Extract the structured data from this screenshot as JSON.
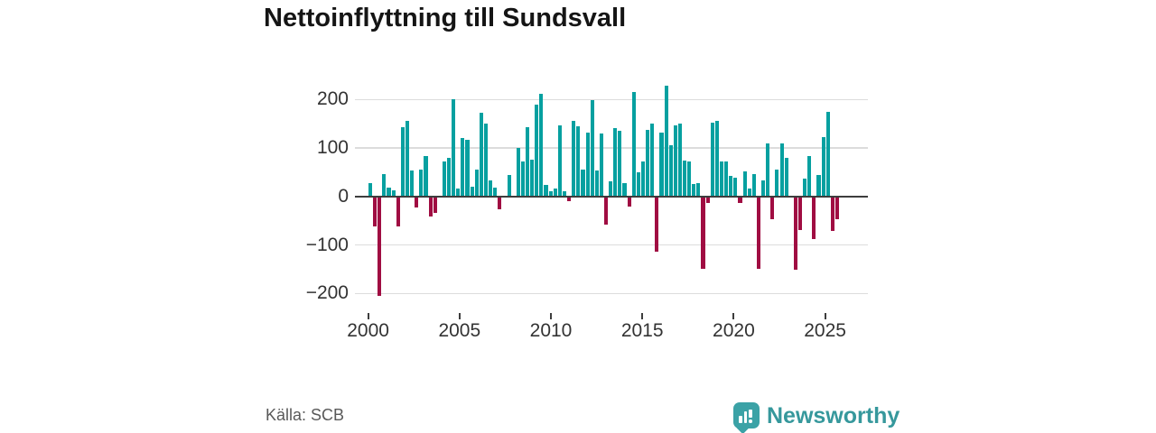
{
  "title": "Nettoinflyttning till Sundsvall",
  "source": "Källa: SCB",
  "brand": {
    "name": "Newsworthy"
  },
  "colors": {
    "positive": "#06a0a0",
    "negative": "#a00d42",
    "axis": "#3d3d3d",
    "grid": "#dcdcdc",
    "label": "#333333",
    "muted": "#595959",
    "brand_teal": "#3ba2a6"
  },
  "chart_data": {
    "type": "bar",
    "title": "Nettoinflyttning till Sundsvall",
    "xlabel": "",
    "ylabel": "",
    "frequency": "quarterly",
    "start_period": "2000 Q1",
    "end_period": "2025 Q2",
    "ylim": [
      -220,
      240
    ],
    "grid": true,
    "legend": false,
    "y_ticks": [
      {
        "label": "200",
        "value": 200
      },
      {
        "label": "100",
        "value": 100
      },
      {
        "label": "0",
        "value": 0
      },
      {
        "label": "−100",
        "value": -100
      },
      {
        "label": "−200",
        "value": -200
      }
    ],
    "x_ticks": [
      {
        "label": "2000",
        "year": 2000
      },
      {
        "label": "2005",
        "year": 2005
      },
      {
        "label": "2010",
        "year": 2010
      },
      {
        "label": "2015",
        "year": 2015
      },
      {
        "label": "2020",
        "year": 2020
      },
      {
        "label": "2025",
        "year": 2025
      }
    ],
    "values": [
      27,
      -62,
      -205,
      47,
      19,
      12,
      -61,
      142,
      155,
      54,
      -23,
      55,
      84,
      -41,
      -33,
      2,
      72,
      79,
      200,
      17,
      121,
      116,
      20,
      56,
      173,
      150,
      33,
      19,
      -26,
      2,
      45,
      2,
      100,
      73,
      142,
      76,
      190,
      212,
      24,
      10,
      17,
      147,
      10,
      -9,
      155,
      144,
      56,
      132,
      199,
      53,
      129,
      -58,
      31,
      141,
      135,
      28,
      -20,
      215,
      50,
      73,
      138,
      151,
      -114,
      132,
      229,
      106,
      146,
      151,
      74,
      72,
      25,
      28,
      -149,
      -14,
      152,
      155,
      73,
      73,
      42,
      38,
      -14,
      52,
      17,
      46,
      -150,
      33,
      110,
      -46,
      56,
      110,
      80,
      0,
      -152,
      -69,
      36,
      84,
      -87,
      45,
      123,
      174,
      -71,
      -46
    ]
  }
}
